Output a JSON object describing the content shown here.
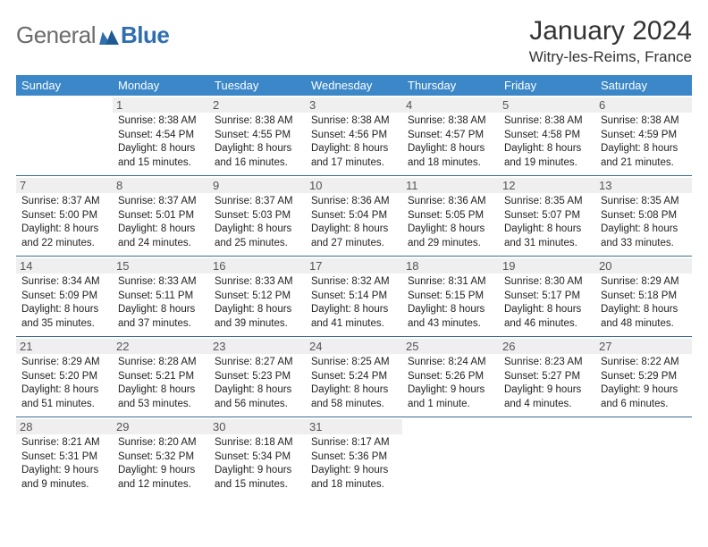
{
  "brand": {
    "word1": "General",
    "word2": "Blue"
  },
  "title": "January 2024",
  "location": "Witry-les-Reims, France",
  "colors": {
    "header_bg": "#3b87c8",
    "header_text": "#ffffff",
    "row_divider": "#3b6d9a",
    "daynum_bg": "#efefef",
    "logo_gray": "#6b6b6b",
    "logo_blue": "#2f6fb0",
    "page_bg": "#ffffff"
  },
  "fonts": {
    "title_size": 30,
    "location_size": 17,
    "dayhead_size": 13,
    "cell_size": 11.5
  },
  "day_headers": [
    "Sunday",
    "Monday",
    "Tuesday",
    "Wednesday",
    "Thursday",
    "Friday",
    "Saturday"
  ],
  "weeks": [
    [
      null,
      {
        "n": "1",
        "sunrise": "Sunrise: 8:38 AM",
        "sunset": "Sunset: 4:54 PM",
        "d1": "Daylight: 8 hours",
        "d2": "and 15 minutes."
      },
      {
        "n": "2",
        "sunrise": "Sunrise: 8:38 AM",
        "sunset": "Sunset: 4:55 PM",
        "d1": "Daylight: 8 hours",
        "d2": "and 16 minutes."
      },
      {
        "n": "3",
        "sunrise": "Sunrise: 8:38 AM",
        "sunset": "Sunset: 4:56 PM",
        "d1": "Daylight: 8 hours",
        "d2": "and 17 minutes."
      },
      {
        "n": "4",
        "sunrise": "Sunrise: 8:38 AM",
        "sunset": "Sunset: 4:57 PM",
        "d1": "Daylight: 8 hours",
        "d2": "and 18 minutes."
      },
      {
        "n": "5",
        "sunrise": "Sunrise: 8:38 AM",
        "sunset": "Sunset: 4:58 PM",
        "d1": "Daylight: 8 hours",
        "d2": "and 19 minutes."
      },
      {
        "n": "6",
        "sunrise": "Sunrise: 8:38 AM",
        "sunset": "Sunset: 4:59 PM",
        "d1": "Daylight: 8 hours",
        "d2": "and 21 minutes."
      }
    ],
    [
      {
        "n": "7",
        "sunrise": "Sunrise: 8:37 AM",
        "sunset": "Sunset: 5:00 PM",
        "d1": "Daylight: 8 hours",
        "d2": "and 22 minutes."
      },
      {
        "n": "8",
        "sunrise": "Sunrise: 8:37 AM",
        "sunset": "Sunset: 5:01 PM",
        "d1": "Daylight: 8 hours",
        "d2": "and 24 minutes."
      },
      {
        "n": "9",
        "sunrise": "Sunrise: 8:37 AM",
        "sunset": "Sunset: 5:03 PM",
        "d1": "Daylight: 8 hours",
        "d2": "and 25 minutes."
      },
      {
        "n": "10",
        "sunrise": "Sunrise: 8:36 AM",
        "sunset": "Sunset: 5:04 PM",
        "d1": "Daylight: 8 hours",
        "d2": "and 27 minutes."
      },
      {
        "n": "11",
        "sunrise": "Sunrise: 8:36 AM",
        "sunset": "Sunset: 5:05 PM",
        "d1": "Daylight: 8 hours",
        "d2": "and 29 minutes."
      },
      {
        "n": "12",
        "sunrise": "Sunrise: 8:35 AM",
        "sunset": "Sunset: 5:07 PM",
        "d1": "Daylight: 8 hours",
        "d2": "and 31 minutes."
      },
      {
        "n": "13",
        "sunrise": "Sunrise: 8:35 AM",
        "sunset": "Sunset: 5:08 PM",
        "d1": "Daylight: 8 hours",
        "d2": "and 33 minutes."
      }
    ],
    [
      {
        "n": "14",
        "sunrise": "Sunrise: 8:34 AM",
        "sunset": "Sunset: 5:09 PM",
        "d1": "Daylight: 8 hours",
        "d2": "and 35 minutes."
      },
      {
        "n": "15",
        "sunrise": "Sunrise: 8:33 AM",
        "sunset": "Sunset: 5:11 PM",
        "d1": "Daylight: 8 hours",
        "d2": "and 37 minutes."
      },
      {
        "n": "16",
        "sunrise": "Sunrise: 8:33 AM",
        "sunset": "Sunset: 5:12 PM",
        "d1": "Daylight: 8 hours",
        "d2": "and 39 minutes."
      },
      {
        "n": "17",
        "sunrise": "Sunrise: 8:32 AM",
        "sunset": "Sunset: 5:14 PM",
        "d1": "Daylight: 8 hours",
        "d2": "and 41 minutes."
      },
      {
        "n": "18",
        "sunrise": "Sunrise: 8:31 AM",
        "sunset": "Sunset: 5:15 PM",
        "d1": "Daylight: 8 hours",
        "d2": "and 43 minutes."
      },
      {
        "n": "19",
        "sunrise": "Sunrise: 8:30 AM",
        "sunset": "Sunset: 5:17 PM",
        "d1": "Daylight: 8 hours",
        "d2": "and 46 minutes."
      },
      {
        "n": "20",
        "sunrise": "Sunrise: 8:29 AM",
        "sunset": "Sunset: 5:18 PM",
        "d1": "Daylight: 8 hours",
        "d2": "and 48 minutes."
      }
    ],
    [
      {
        "n": "21",
        "sunrise": "Sunrise: 8:29 AM",
        "sunset": "Sunset: 5:20 PM",
        "d1": "Daylight: 8 hours",
        "d2": "and 51 minutes."
      },
      {
        "n": "22",
        "sunrise": "Sunrise: 8:28 AM",
        "sunset": "Sunset: 5:21 PM",
        "d1": "Daylight: 8 hours",
        "d2": "and 53 minutes."
      },
      {
        "n": "23",
        "sunrise": "Sunrise: 8:27 AM",
        "sunset": "Sunset: 5:23 PM",
        "d1": "Daylight: 8 hours",
        "d2": "and 56 minutes."
      },
      {
        "n": "24",
        "sunrise": "Sunrise: 8:25 AM",
        "sunset": "Sunset: 5:24 PM",
        "d1": "Daylight: 8 hours",
        "d2": "and 58 minutes."
      },
      {
        "n": "25",
        "sunrise": "Sunrise: 8:24 AM",
        "sunset": "Sunset: 5:26 PM",
        "d1": "Daylight: 9 hours",
        "d2": "and 1 minute."
      },
      {
        "n": "26",
        "sunrise": "Sunrise: 8:23 AM",
        "sunset": "Sunset: 5:27 PM",
        "d1": "Daylight: 9 hours",
        "d2": "and 4 minutes."
      },
      {
        "n": "27",
        "sunrise": "Sunrise: 8:22 AM",
        "sunset": "Sunset: 5:29 PM",
        "d1": "Daylight: 9 hours",
        "d2": "and 6 minutes."
      }
    ],
    [
      {
        "n": "28",
        "sunrise": "Sunrise: 8:21 AM",
        "sunset": "Sunset: 5:31 PM",
        "d1": "Daylight: 9 hours",
        "d2": "and 9 minutes."
      },
      {
        "n": "29",
        "sunrise": "Sunrise: 8:20 AM",
        "sunset": "Sunset: 5:32 PM",
        "d1": "Daylight: 9 hours",
        "d2": "and 12 minutes."
      },
      {
        "n": "30",
        "sunrise": "Sunrise: 8:18 AM",
        "sunset": "Sunset: 5:34 PM",
        "d1": "Daylight: 9 hours",
        "d2": "and 15 minutes."
      },
      {
        "n": "31",
        "sunrise": "Sunrise: 8:17 AM",
        "sunset": "Sunset: 5:36 PM",
        "d1": "Daylight: 9 hours",
        "d2": "and 18 minutes."
      },
      null,
      null,
      null
    ]
  ]
}
